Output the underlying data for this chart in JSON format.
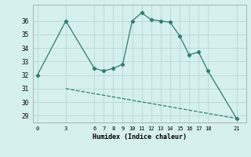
{
  "xlabel": "Humidex (Indice chaleur)",
  "x_ticks": [
    0,
    3,
    6,
    7,
    8,
    9,
    10,
    11,
    12,
    13,
    14,
    15,
    16,
    17,
    18,
    21
  ],
  "line1_x": [
    0,
    3,
    6,
    7,
    8,
    9,
    10,
    11,
    12,
    13,
    14,
    15,
    16,
    17,
    18,
    21
  ],
  "line1_y": [
    32.0,
    36.0,
    32.5,
    32.3,
    32.5,
    32.8,
    36.0,
    36.6,
    36.1,
    36.0,
    35.9,
    34.9,
    33.5,
    33.7,
    32.3,
    28.8
  ],
  "line2_x": [
    3,
    21
  ],
  "line2_y": [
    31.0,
    28.8
  ],
  "line_color": "#2e7d6e",
  "bg_color": "#d6f0ed",
  "grid_color": "#b8ddd9",
  "ylim": [
    28.5,
    37.2
  ],
  "xlim": [
    -0.5,
    22.0
  ],
  "yticks": [
    29,
    30,
    31,
    32,
    33,
    34,
    35,
    36
  ]
}
